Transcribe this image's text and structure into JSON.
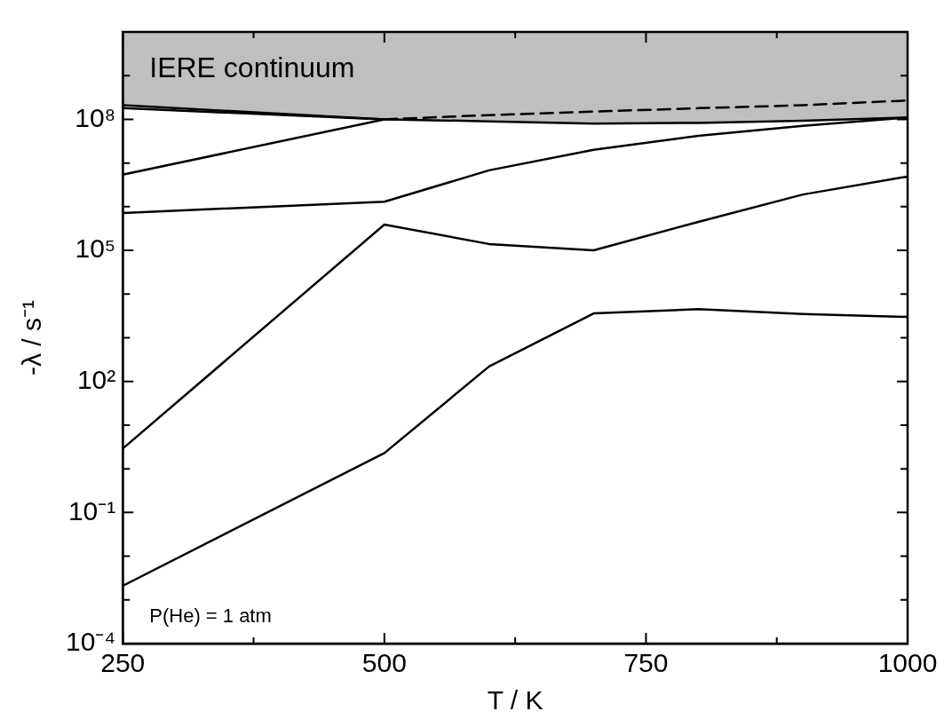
{
  "chart_data": {
    "type": "line",
    "xlabel": "T / K",
    "ylabel": "-λ / s⁻¹",
    "annotations": [
      "IERE continuum",
      "P(He) = 1 atm"
    ],
    "x": [
      250,
      500,
      600,
      700,
      800,
      900,
      1000
    ],
    "xlim": [
      250,
      1000
    ],
    "xticks": [
      250,
      {
        "value": 375,
        "label": null
      },
      500,
      {
        "value": 625,
        "label": null
      },
      750,
      {
        "value": 875,
        "label": null
      },
      1000
    ],
    "log": true,
    "ylim": [
      0.0001,
      10000000000
    ],
    "yticks": [
      {
        "value": 0.0001,
        "label": "10⁻⁴"
      },
      {
        "value": 0.001,
        "label": null
      },
      {
        "value": 0.01,
        "label": null
      },
      {
        "value": 0.1,
        "label": "10⁻¹"
      },
      {
        "value": 1,
        "label": null
      },
      {
        "value": 10,
        "label": null
      },
      {
        "value": 100,
        "label": "10²"
      },
      {
        "value": 1000,
        "label": null
      },
      {
        "value": 10000,
        "label": null
      },
      {
        "value": 100000,
        "label": "10⁵"
      },
      {
        "value": 1000000,
        "label": null
      },
      {
        "value": 10000000,
        "label": null
      },
      {
        "value": 100000000,
        "label": "10⁸"
      },
      {
        "value": 1000000000,
        "label": null
      },
      {
        "value": 10000000000,
        "label": null
      }
    ],
    "grid": false,
    "legend": false,
    "marker": "none",
    "line_style": "solid",
    "series": [
      {
        "color": "#000000",
        "values": [
          210000000,
          100000000,
          90000000,
          80000000,
          83000000,
          93000000,
          110000000
        ],
        "lower": [
          210000000,
          100000000,
          90000000,
          80000000,
          83000000,
          93000000,
          110000000
        ],
        "upper": [
          10000000000,
          10000000000,
          10000000000,
          10000000000,
          10000000000,
          10000000000,
          10000000000
        ]
      },
      {
        "color": "#000000",
        "line_style": "dashed",
        "values": [
          null,
          100000000,
          125000000,
          150000000,
          180000000,
          210000000,
          270000000
        ]
      },
      {
        "color": "#000000",
        "values": [
          180000000,
          100000000,
          null,
          null,
          null,
          null,
          null
        ]
      },
      {
        "color": "#000000",
        "values": [
          5400000,
          100000000,
          null,
          null,
          null,
          null,
          null
        ]
      },
      {
        "color": "#000000",
        "values": [
          720000,
          1300000,
          6800000,
          20000000,
          42000000,
          71000000,
          110000000
        ]
      },
      {
        "color": "#000000",
        "values": [
          2.9,
          390000,
          140000,
          100000,
          450000,
          1900000,
          4900000
        ]
      },
      {
        "color": "#000000",
        "values": [
          0.0021,
          2.3,
          220,
          3600,
          4500,
          3500,
          3000
        ]
      }
    ]
  }
}
